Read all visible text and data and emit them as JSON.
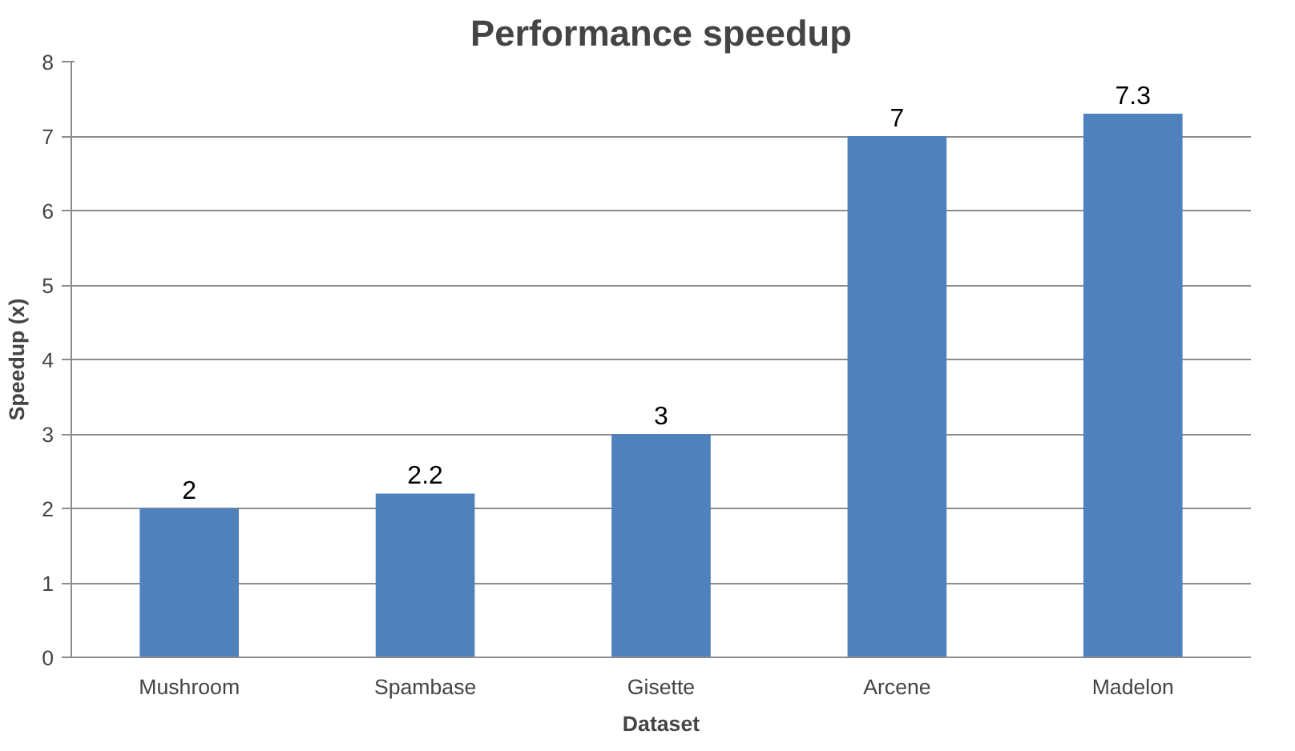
{
  "chart_data": {
    "type": "bar",
    "title": "Performance speedup",
    "xlabel": "Dataset",
    "ylabel": "Speedup (x)",
    "categories": [
      "Mushroom",
      "Spambase",
      "Gisette",
      "Arcene",
      "Madelon"
    ],
    "values": [
      2,
      2.2,
      3,
      7,
      7.3
    ],
    "color": "#4f81bd",
    "ylim": [
      0,
      8
    ],
    "yticks": [
      0,
      1,
      2,
      3,
      4,
      5,
      6,
      7,
      8
    ],
    "grid": "y",
    "data_labels": true
  }
}
